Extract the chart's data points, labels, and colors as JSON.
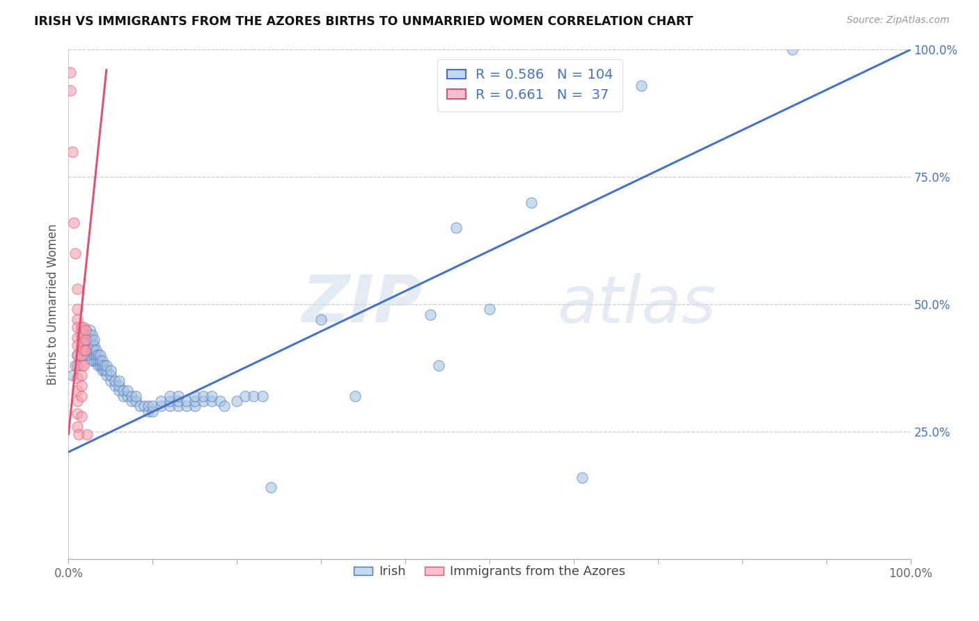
{
  "title": "IRISH VS IMMIGRANTS FROM THE AZORES BIRTHS TO UNMARRIED WOMEN CORRELATION CHART",
  "source": "Source: ZipAtlas.com",
  "ylabel": "Births to Unmarried Women",
  "xlim": [
    0,
    1.0
  ],
  "ylim": [
    0,
    1.0
  ],
  "xtick_vals": [
    0.0,
    0.1,
    0.2,
    0.3,
    0.4,
    0.5,
    0.6,
    0.7,
    0.8,
    0.9,
    1.0
  ],
  "xtick_labels": [
    "0.0%",
    "",
    "",
    "",
    "",
    "",
    "",
    "",
    "",
    "",
    "100.0%"
  ],
  "ytick_vals": [
    0.25,
    0.5,
    0.75,
    1.0
  ],
  "ytick_labels": [
    "25.0%",
    "50.0%",
    "75.0%",
    "100.0%"
  ],
  "legend_labels": [
    "Irish",
    "Immigrants from the Azores"
  ],
  "irish_color": "#a8c4e0",
  "azores_color": "#f4a0b0",
  "irish_line_color": "#4472c4",
  "azores_line_color": "#e05070",
  "r_irish": 0.586,
  "n_irish": 104,
  "r_azores": 0.661,
  "n_azores": 37,
  "watermark_zip": "ZIP",
  "watermark_atlas": "atlas",
  "irish_trendline": [
    [
      0.0,
      0.21
    ],
    [
      1.0,
      1.0
    ]
  ],
  "azores_trendline": [
    [
      0.0,
      0.245
    ],
    [
      0.045,
      0.96
    ]
  ],
  "irish_scatter": [
    [
      0.005,
      0.36
    ],
    [
      0.008,
      0.38
    ],
    [
      0.01,
      0.4
    ],
    [
      0.015,
      0.42
    ],
    [
      0.015,
      0.44
    ],
    [
      0.015,
      0.45
    ],
    [
      0.018,
      0.4
    ],
    [
      0.018,
      0.42
    ],
    [
      0.018,
      0.44
    ],
    [
      0.02,
      0.41
    ],
    [
      0.02,
      0.43
    ],
    [
      0.02,
      0.45
    ],
    [
      0.022,
      0.4
    ],
    [
      0.022,
      0.42
    ],
    [
      0.022,
      0.43
    ],
    [
      0.025,
      0.4
    ],
    [
      0.025,
      0.41
    ],
    [
      0.025,
      0.42
    ],
    [
      0.025,
      0.43
    ],
    [
      0.025,
      0.44
    ],
    [
      0.025,
      0.45
    ],
    [
      0.028,
      0.39
    ],
    [
      0.028,
      0.41
    ],
    [
      0.028,
      0.42
    ],
    [
      0.028,
      0.43
    ],
    [
      0.028,
      0.44
    ],
    [
      0.03,
      0.39
    ],
    [
      0.03,
      0.4
    ],
    [
      0.03,
      0.41
    ],
    [
      0.03,
      0.42
    ],
    [
      0.03,
      0.43
    ],
    [
      0.033,
      0.39
    ],
    [
      0.033,
      0.4
    ],
    [
      0.033,
      0.41
    ],
    [
      0.035,
      0.38
    ],
    [
      0.035,
      0.39
    ],
    [
      0.035,
      0.4
    ],
    [
      0.038,
      0.38
    ],
    [
      0.038,
      0.39
    ],
    [
      0.038,
      0.4
    ],
    [
      0.04,
      0.37
    ],
    [
      0.04,
      0.38
    ],
    [
      0.04,
      0.39
    ],
    [
      0.043,
      0.37
    ],
    [
      0.043,
      0.38
    ],
    [
      0.045,
      0.36
    ],
    [
      0.045,
      0.37
    ],
    [
      0.045,
      0.38
    ],
    [
      0.05,
      0.35
    ],
    [
      0.05,
      0.36
    ],
    [
      0.05,
      0.37
    ],
    [
      0.055,
      0.34
    ],
    [
      0.055,
      0.35
    ],
    [
      0.06,
      0.33
    ],
    [
      0.06,
      0.34
    ],
    [
      0.06,
      0.35
    ],
    [
      0.065,
      0.32
    ],
    [
      0.065,
      0.33
    ],
    [
      0.07,
      0.32
    ],
    [
      0.07,
      0.33
    ],
    [
      0.075,
      0.31
    ],
    [
      0.075,
      0.32
    ],
    [
      0.08,
      0.31
    ],
    [
      0.08,
      0.32
    ],
    [
      0.085,
      0.3
    ],
    [
      0.09,
      0.3
    ],
    [
      0.095,
      0.29
    ],
    [
      0.095,
      0.3
    ],
    [
      0.1,
      0.29
    ],
    [
      0.1,
      0.3
    ],
    [
      0.11,
      0.3
    ],
    [
      0.11,
      0.31
    ],
    [
      0.12,
      0.3
    ],
    [
      0.12,
      0.31
    ],
    [
      0.12,
      0.32
    ],
    [
      0.13,
      0.3
    ],
    [
      0.13,
      0.31
    ],
    [
      0.13,
      0.32
    ],
    [
      0.14,
      0.3
    ],
    [
      0.14,
      0.31
    ],
    [
      0.15,
      0.3
    ],
    [
      0.15,
      0.31
    ],
    [
      0.15,
      0.32
    ],
    [
      0.16,
      0.31
    ],
    [
      0.16,
      0.32
    ],
    [
      0.17,
      0.31
    ],
    [
      0.17,
      0.32
    ],
    [
      0.18,
      0.31
    ],
    [
      0.185,
      0.3
    ],
    [
      0.2,
      0.31
    ],
    [
      0.21,
      0.32
    ],
    [
      0.22,
      0.32
    ],
    [
      0.23,
      0.32
    ],
    [
      0.24,
      0.14
    ],
    [
      0.3,
      0.47
    ],
    [
      0.34,
      0.32
    ],
    [
      0.43,
      0.48
    ],
    [
      0.44,
      0.38
    ],
    [
      0.46,
      0.65
    ],
    [
      0.5,
      0.49
    ],
    [
      0.55,
      0.7
    ],
    [
      0.61,
      0.16
    ],
    [
      0.68,
      0.93
    ],
    [
      0.86,
      1.0
    ]
  ],
  "azores_scatter": [
    [
      0.002,
      0.955
    ],
    [
      0.002,
      0.92
    ],
    [
      0.005,
      0.8
    ],
    [
      0.006,
      0.66
    ],
    [
      0.008,
      0.6
    ],
    [
      0.01,
      0.53
    ],
    [
      0.01,
      0.49
    ],
    [
      0.01,
      0.47
    ],
    [
      0.01,
      0.455
    ],
    [
      0.01,
      0.435
    ],
    [
      0.01,
      0.42
    ],
    [
      0.01,
      0.4
    ],
    [
      0.01,
      0.38
    ],
    [
      0.01,
      0.355
    ],
    [
      0.01,
      0.33
    ],
    [
      0.01,
      0.31
    ],
    [
      0.01,
      0.285
    ],
    [
      0.01,
      0.26
    ],
    [
      0.012,
      0.245
    ],
    [
      0.015,
      0.455
    ],
    [
      0.015,
      0.435
    ],
    [
      0.015,
      0.415
    ],
    [
      0.015,
      0.4
    ],
    [
      0.015,
      0.38
    ],
    [
      0.015,
      0.36
    ],
    [
      0.015,
      0.34
    ],
    [
      0.015,
      0.32
    ],
    [
      0.015,
      0.28
    ],
    [
      0.018,
      0.455
    ],
    [
      0.018,
      0.44
    ],
    [
      0.018,
      0.425
    ],
    [
      0.018,
      0.41
    ],
    [
      0.018,
      0.38
    ],
    [
      0.02,
      0.45
    ],
    [
      0.02,
      0.43
    ],
    [
      0.02,
      0.41
    ],
    [
      0.022,
      0.245
    ]
  ]
}
